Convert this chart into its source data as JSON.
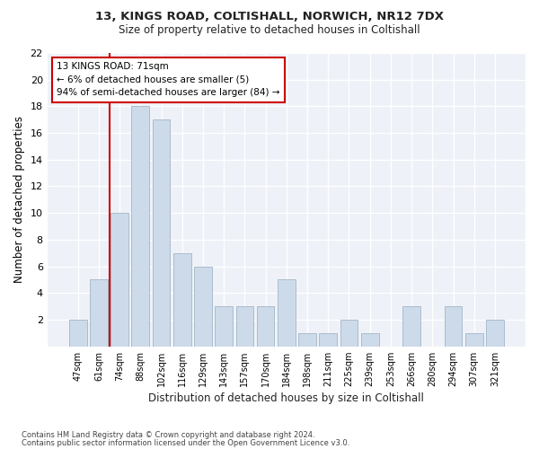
{
  "title1": "13, KINGS ROAD, COLTISHALL, NORWICH, NR12 7DX",
  "title2": "Size of property relative to detached houses in Coltishall",
  "xlabel": "Distribution of detached houses by size in Coltishall",
  "ylabel": "Number of detached properties",
  "categories": [
    "47sqm",
    "61sqm",
    "74sqm",
    "88sqm",
    "102sqm",
    "116sqm",
    "129sqm",
    "143sqm",
    "157sqm",
    "170sqm",
    "184sqm",
    "198sqm",
    "211sqm",
    "225sqm",
    "239sqm",
    "253sqm",
    "266sqm",
    "280sqm",
    "294sqm",
    "307sqm",
    "321sqm"
  ],
  "values": [
    2,
    5,
    10,
    18,
    17,
    7,
    6,
    3,
    3,
    3,
    5,
    1,
    1,
    2,
    1,
    0,
    3,
    0,
    3,
    1,
    2
  ],
  "bar_color": "#ccdaea",
  "bar_edge_color": "#aabccc",
  "vline_position": 2,
  "vline_color": "#cc0000",
  "annotation_lines": [
    "13 KINGS ROAD: 71sqm",
    "← 6% of detached houses are smaller (5)",
    "94% of semi-detached houses are larger (84) →"
  ],
  "annotation_box_color": "#cc0000",
  "ylim": [
    0,
    22
  ],
  "yticks": [
    0,
    2,
    4,
    6,
    8,
    10,
    12,
    14,
    16,
    18,
    20,
    22
  ],
  "footer1": "Contains HM Land Registry data © Crown copyright and database right 2024.",
  "footer2": "Contains public sector information licensed under the Open Government Licence v3.0.",
  "bg_color": "#ffffff",
  "plot_bg_color": "#eef2f8"
}
